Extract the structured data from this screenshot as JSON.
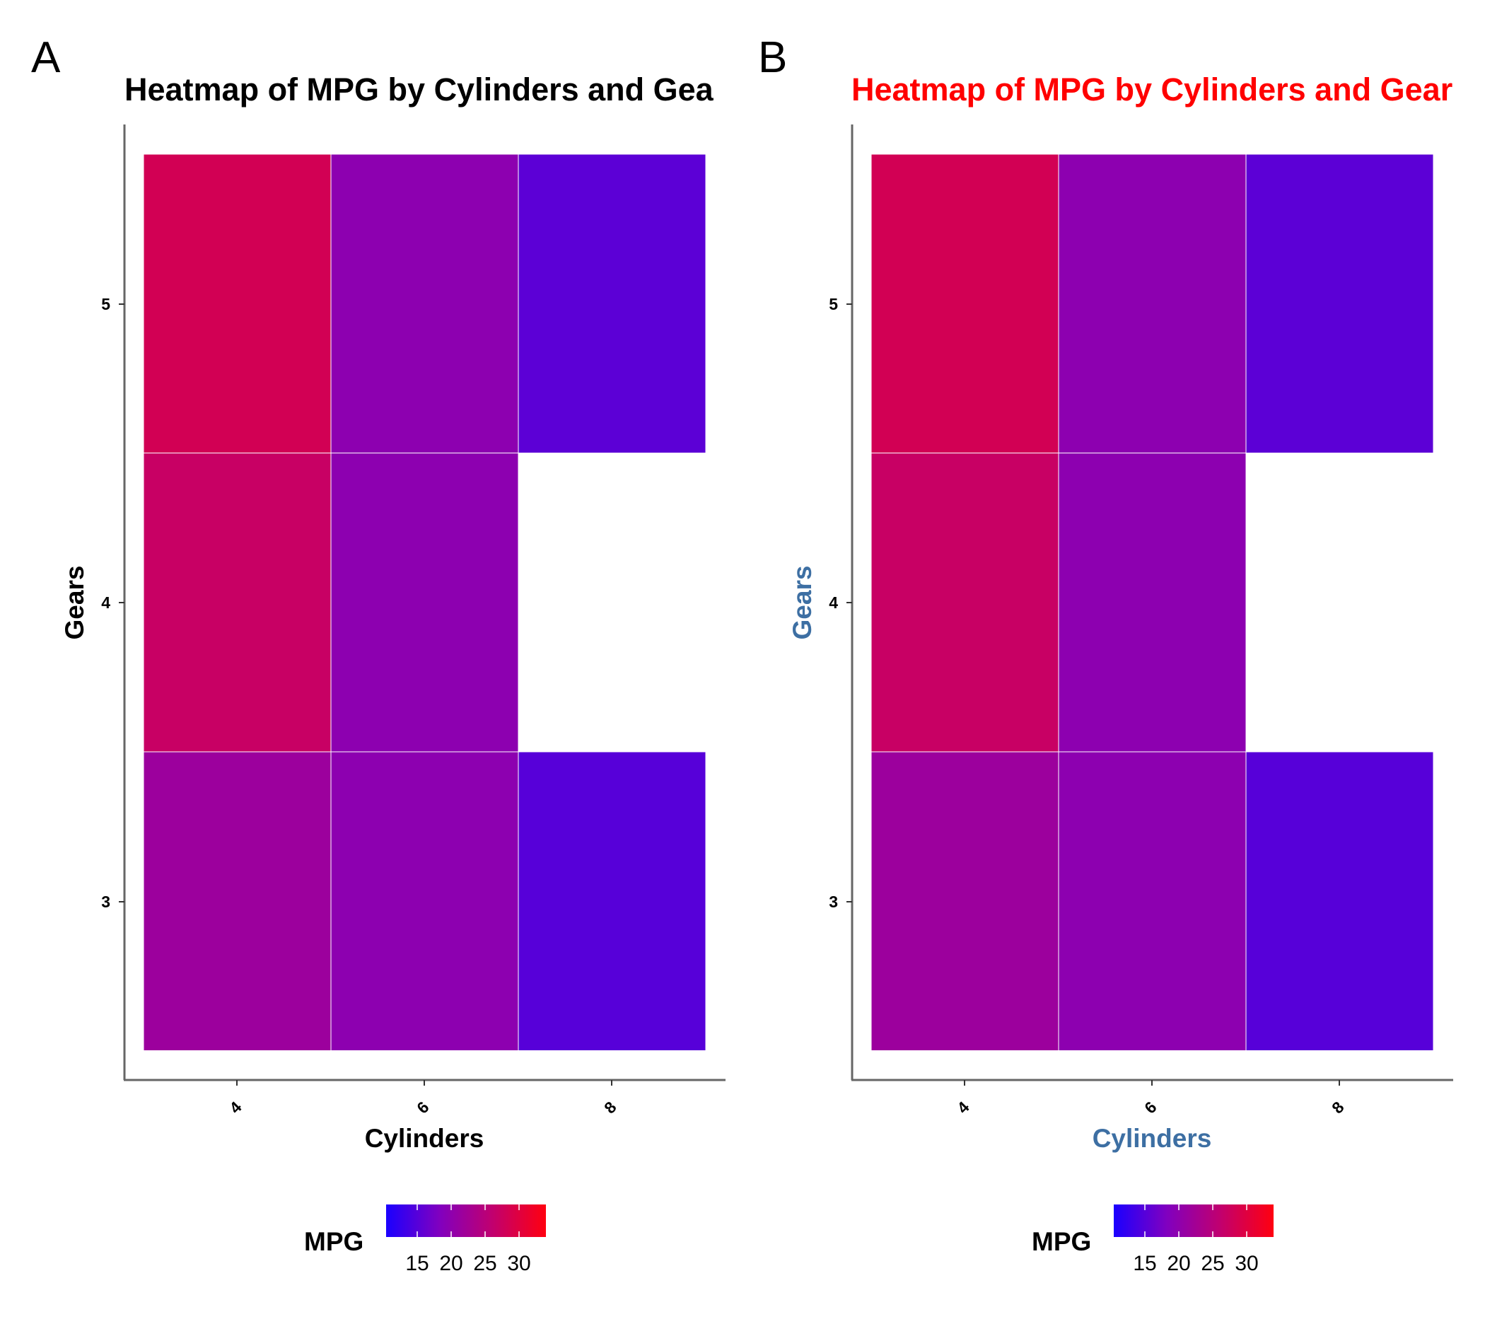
{
  "panels": [
    {
      "letter": "A",
      "title": "Heatmap of MPG by Cylinders and Gea",
      "title_color": "#000000",
      "axis_title_color": "#000000"
    },
    {
      "letter": "B",
      "title": "Heatmap of MPG by Cylinders and Gear",
      "title_color": "#ff0000",
      "axis_title_color": "#3d6fa3"
    }
  ],
  "chart_data": [
    {
      "type": "heatmap",
      "title": "Heatmap of MPG by Cylinders and Gea",
      "xlabel": "Cylinders",
      "ylabel": "Gears",
      "x_categories": [
        "4",
        "6",
        "8"
      ],
      "y_categories": [
        "3",
        "4",
        "5"
      ],
      "cells": [
        {
          "x": "4",
          "y": "3",
          "value": 21.5
        },
        {
          "x": "6",
          "y": "3",
          "value": 19.75
        },
        {
          "x": "8",
          "y": "3",
          "value": 15.05
        },
        {
          "x": "4",
          "y": "4",
          "value": 26.93
        },
        {
          "x": "6",
          "y": "4",
          "value": 19.75
        },
        {
          "x": "4",
          "y": "5",
          "value": 28.2
        },
        {
          "x": "6",
          "y": "5",
          "value": 19.7
        },
        {
          "x": "8",
          "y": "5",
          "value": 15.4
        }
      ],
      "legend": {
        "title": "MPG",
        "ticks": [
          "15",
          "20",
          "25",
          "30"
        ],
        "range": [
          10.4,
          33.9
        ],
        "low_color": "#0000ff",
        "high_color": "#ff0000",
        "position": "bottom"
      },
      "grid": false
    },
    {
      "type": "heatmap",
      "title": "Heatmap of MPG by Cylinders and Gear",
      "xlabel": "Cylinders",
      "ylabel": "Gears",
      "x_categories": [
        "4",
        "6",
        "8"
      ],
      "y_categories": [
        "3",
        "4",
        "5"
      ],
      "cells": [
        {
          "x": "4",
          "y": "3",
          "value": 21.5
        },
        {
          "x": "6",
          "y": "3",
          "value": 19.75
        },
        {
          "x": "8",
          "y": "3",
          "value": 15.05
        },
        {
          "x": "4",
          "y": "4",
          "value": 26.93
        },
        {
          "x": "6",
          "y": "4",
          "value": 19.75
        },
        {
          "x": "4",
          "y": "5",
          "value": 28.2
        },
        {
          "x": "6",
          "y": "5",
          "value": 19.7
        },
        {
          "x": "8",
          "y": "5",
          "value": 15.4
        }
      ],
      "legend": {
        "title": "MPG",
        "ticks": [
          "15",
          "20",
          "25",
          "30"
        ],
        "range": [
          10.4,
          33.9
        ],
        "low_color": "#0000ff",
        "high_color": "#ff0000",
        "position": "bottom"
      },
      "grid": false
    }
  ]
}
